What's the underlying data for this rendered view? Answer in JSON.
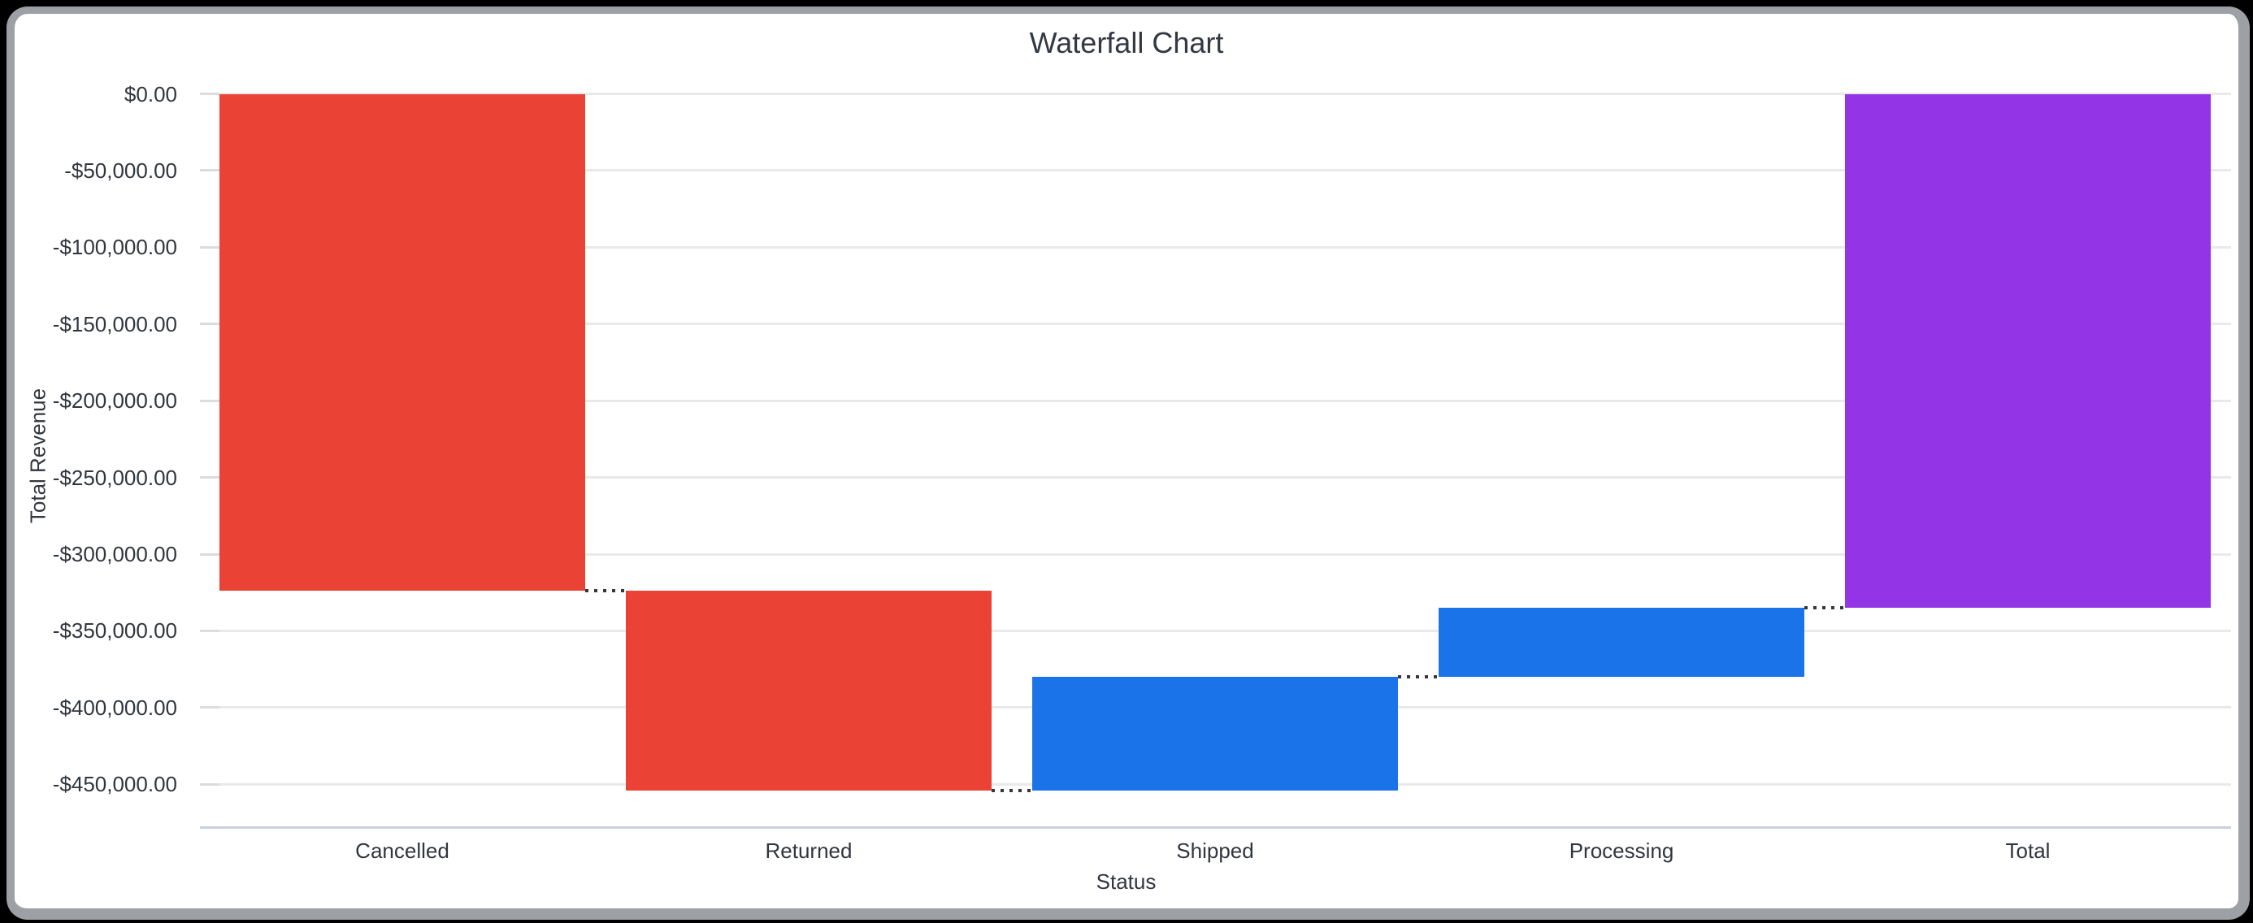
{
  "chart_data": {
    "type": "waterfall",
    "title": "Waterfall Chart",
    "xlabel": "Status",
    "ylabel": "Total Revenue",
    "categories": [
      "Cancelled",
      "Returned",
      "Shipped",
      "Processing",
      "Total"
    ],
    "steps": [
      {
        "label": "Cancelled",
        "value": -324000,
        "start": 0,
        "end": -324000,
        "role": "negative"
      },
      {
        "label": "Returned",
        "value": -130000,
        "start": -324000,
        "end": -454000,
        "role": "negative"
      },
      {
        "label": "Shipped",
        "value": 74000,
        "start": -454000,
        "end": -380000,
        "role": "positive"
      },
      {
        "label": "Processing",
        "value": 45000,
        "start": -380000,
        "end": -335000,
        "role": "positive"
      },
      {
        "label": "Total",
        "value": -335000,
        "start": 0,
        "end": -335000,
        "role": "total"
      }
    ],
    "yticks": [
      0,
      -50000,
      -100000,
      -150000,
      -200000,
      -250000,
      -300000,
      -350000,
      -400000,
      -450000
    ],
    "ytick_labels": [
      "$0.00",
      "-$50,000.00",
      "-$100,000.00",
      "-$150,000.00",
      "-$200,000.00",
      "-$250,000.00",
      "-$300,000.00",
      "-$350,000.00",
      "-$400,000.00",
      "-$450,000.00"
    ],
    "ylim": [
      -477500,
      0
    ],
    "grid": true,
    "legend": "none",
    "connector_style": "dotted",
    "colors": {
      "negative": "#ea4335",
      "positive": "#1a73e8",
      "total": "#9334e6",
      "background": "#ffffff",
      "card_border": "#9da0a4",
      "page_background": "#000000",
      "gridline": "#e9e9e9",
      "axis_line": "#c9d0e0",
      "text": "#31363e"
    }
  }
}
